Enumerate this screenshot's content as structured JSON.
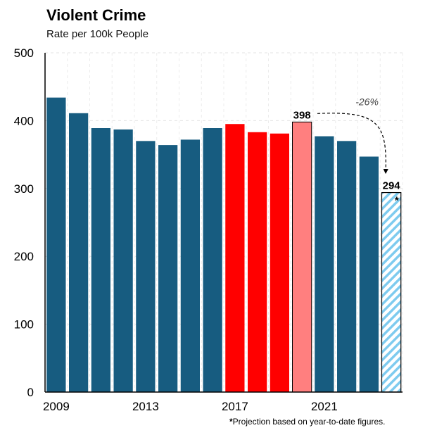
{
  "chart_data": {
    "type": "bar",
    "title": "Violent Crime",
    "subtitle": "Rate per 100k People",
    "ylim": [
      0,
      500
    ],
    "yticks": [
      0,
      100,
      200,
      300,
      400,
      500
    ],
    "xtick_labels": [
      {
        "index": 0,
        "label": "2009"
      },
      {
        "index": 4,
        "label": "2013"
      },
      {
        "index": 8,
        "label": "2017"
      },
      {
        "index": 12,
        "label": "2021"
      }
    ],
    "categories": [
      "2009",
      "2010",
      "2011",
      "2012",
      "2013",
      "2014",
      "2015",
      "2016",
      "2017",
      "2018",
      "2019",
      "2020",
      "2021",
      "2022",
      "2023",
      "2024"
    ],
    "values": [
      434,
      411,
      389,
      387,
      370,
      364,
      372,
      389,
      395,
      383,
      381,
      398,
      377,
      370,
      347,
      294
    ],
    "bar_colors": [
      "#175c80",
      "#175c80",
      "#175c80",
      "#175c80",
      "#175c80",
      "#175c80",
      "#175c80",
      "#175c80",
      "#ff0000",
      "#ff0000",
      "#ff0000",
      "#ff7f7f",
      "#175c80",
      "#175c80",
      "#175c80",
      "hatch"
    ],
    "data_labels": [
      {
        "index": 11,
        "text": "398"
      },
      {
        "index": 15,
        "text": "294"
      }
    ],
    "annotation": {
      "from_index": 11,
      "to_index": 15,
      "text": "-26%"
    },
    "projection_marker": "*",
    "footnote_marker": "*",
    "footnote": "Projection based on year-to-date figures.",
    "grid": true
  },
  "colors": {
    "bar": "#175c80",
    "highlight": "#ff0000",
    "peak": "#ff7f7f",
    "projection_hatch": "#7ecbef"
  }
}
